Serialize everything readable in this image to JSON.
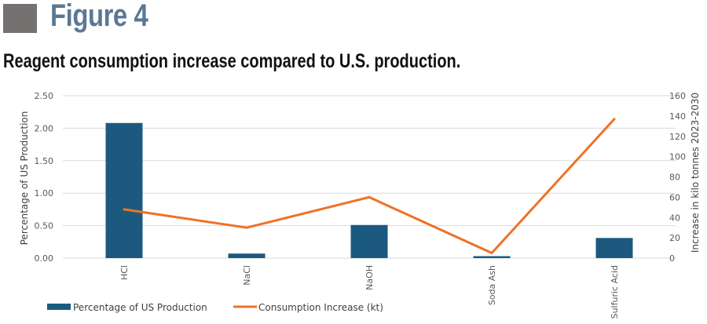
{
  "figure": {
    "label": "Figure 4",
    "caption": "Reagent consumption increase compared to U.S. production."
  },
  "colors": {
    "bar": "#1b5a7e",
    "line": "#ee7228",
    "grid": "#d9d9d9",
    "figure_label": "#5a7896",
    "figure_square": "#757170"
  },
  "chart_data": {
    "type": "bar+line",
    "title": "Reagent consumption increase compared to U.S. production.",
    "categories": [
      "HCl",
      "NaCl",
      "NaOH",
      "Soda Ash",
      "Sulfuric Acid"
    ],
    "series": [
      {
        "name": "Percentage of US Production",
        "type": "bar",
        "axis": "left",
        "values": [
          2.08,
          0.07,
          0.51,
          0.03,
          0.31
        ]
      },
      {
        "name": "Consumption Increase (kt)",
        "type": "line",
        "axis": "right",
        "values": [
          48,
          30,
          60,
          5,
          137
        ]
      }
    ],
    "ylabel": "Percentage of US Production",
    "y2label": "Increase in kilo tonnes 2023-2030",
    "xlabel": "",
    "ylim": [
      0,
      2.5
    ],
    "y2lim": [
      0,
      160
    ],
    "yticks": [
      "0.00",
      "0.50",
      "1.00",
      "1.50",
      "2.00",
      "2.50"
    ],
    "y2ticks": [
      "0",
      "20",
      "40",
      "60",
      "80",
      "100",
      "120",
      "140",
      "160"
    ],
    "grid": true,
    "legend_position": "bottom"
  }
}
